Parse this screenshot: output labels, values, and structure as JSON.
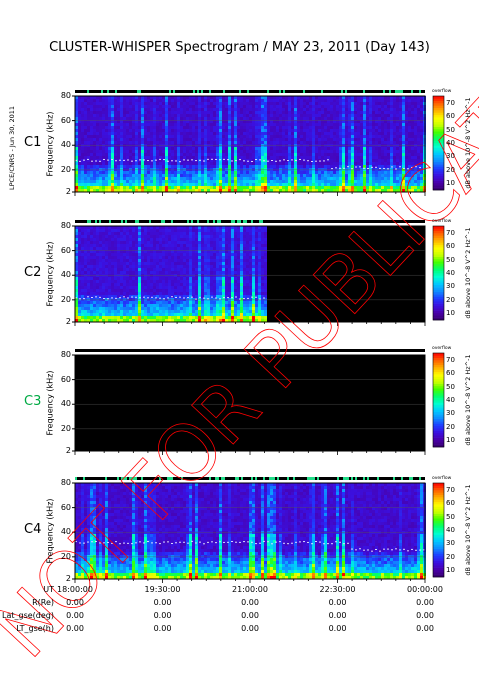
{
  "chart_data": {
    "type": "heatmap",
    "title": "CLUSTER-WHISPER Spectrogram / MAY 23, 2011 (Day 143)",
    "credit": "LPCE/CNRS - Jun 30, 2011",
    "ylabel": "Frequency (kHz)",
    "yticks": [
      "2",
      "20",
      "40",
      "60",
      "80"
    ],
    "ylim": [
      2,
      80
    ],
    "colorbar": {
      "label": "dB above 10^-8 V^2 Hz^-1",
      "header": "overflow",
      "ticks": [
        "10",
        "20",
        "30",
        "40",
        "50",
        "60",
        "70"
      ],
      "range": [
        5,
        75
      ],
      "colors": [
        "#35006a",
        "#4a00a8",
        "#3b10e0",
        "#1f3cff",
        "#0f8cff",
        "#00c8ff",
        "#00ffd0",
        "#00ff70",
        "#40ff00",
        "#c8ff00",
        "#ffff00",
        "#ffb000",
        "#ff6000",
        "#ff0000"
      ]
    },
    "panels": [
      {
        "name": "C1",
        "color": "#000000",
        "data_end_fraction": 1.0,
        "background_level": 12,
        "line_freq": 28,
        "line2_freq": 22,
        "line2_start": 0.72
      },
      {
        "name": "C2",
        "color": "#000000",
        "data_end_fraction": 0.546,
        "background_level": 13,
        "line_freq": 22,
        "line2_freq": 0,
        "line2_start": 1.0
      },
      {
        "name": "C3",
        "color": "#00aa44",
        "data_end_fraction": 0.0,
        "background_level": 0,
        "line_freq": 0,
        "line2_freq": 0,
        "line2_start": 1.0
      },
      {
        "name": "C4",
        "color": "#000000",
        "data_end_fraction": 1.0,
        "background_level": 12,
        "line_freq": 32,
        "line2_freq": 26,
        "line2_start": 0.78
      }
    ]
  },
  "footer": {
    "rows": [
      {
        "label": "UT",
        "values": [
          "18:00:00",
          "19:30:00",
          "21:00:00",
          "22:30:00",
          "00:00:00"
        ]
      },
      {
        "label": "R(Re)",
        "values": [
          "0.00",
          "0.00",
          "0.00",
          "0.00",
          "0.00"
        ]
      },
      {
        "label": "Lat_gse(deg)",
        "values": [
          "0.00",
          "0.00",
          "0.00",
          "0.00",
          "0.00"
        ]
      },
      {
        "label": "LT_gse(h)",
        "values": [
          "0.00",
          "0.00",
          "0.00",
          "0.00",
          "0.00"
        ]
      }
    ]
  },
  "watermark": "NOT FOR PUBLICATION"
}
